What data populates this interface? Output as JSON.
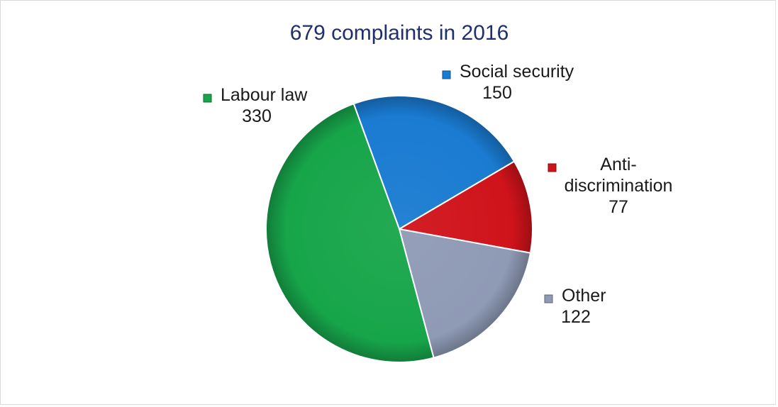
{
  "chart_data": {
    "type": "pie",
    "title": "679 complaints in 2016",
    "slices": [
      {
        "label": "Social security",
        "value": 150,
        "color": "#1a7bd1"
      },
      {
        "label": "Anti-discrimination",
        "label_lines": [
          "Anti-",
          "discrimination"
        ],
        "value": 77,
        "color": "#d0131b"
      },
      {
        "label": "Other",
        "value": 122,
        "color": "#8f9ab5"
      },
      {
        "label": "Labour law",
        "value": 330,
        "color": "#17a54a"
      }
    ],
    "legend": "none",
    "data_labels": "category name and value, outside slices"
  }
}
